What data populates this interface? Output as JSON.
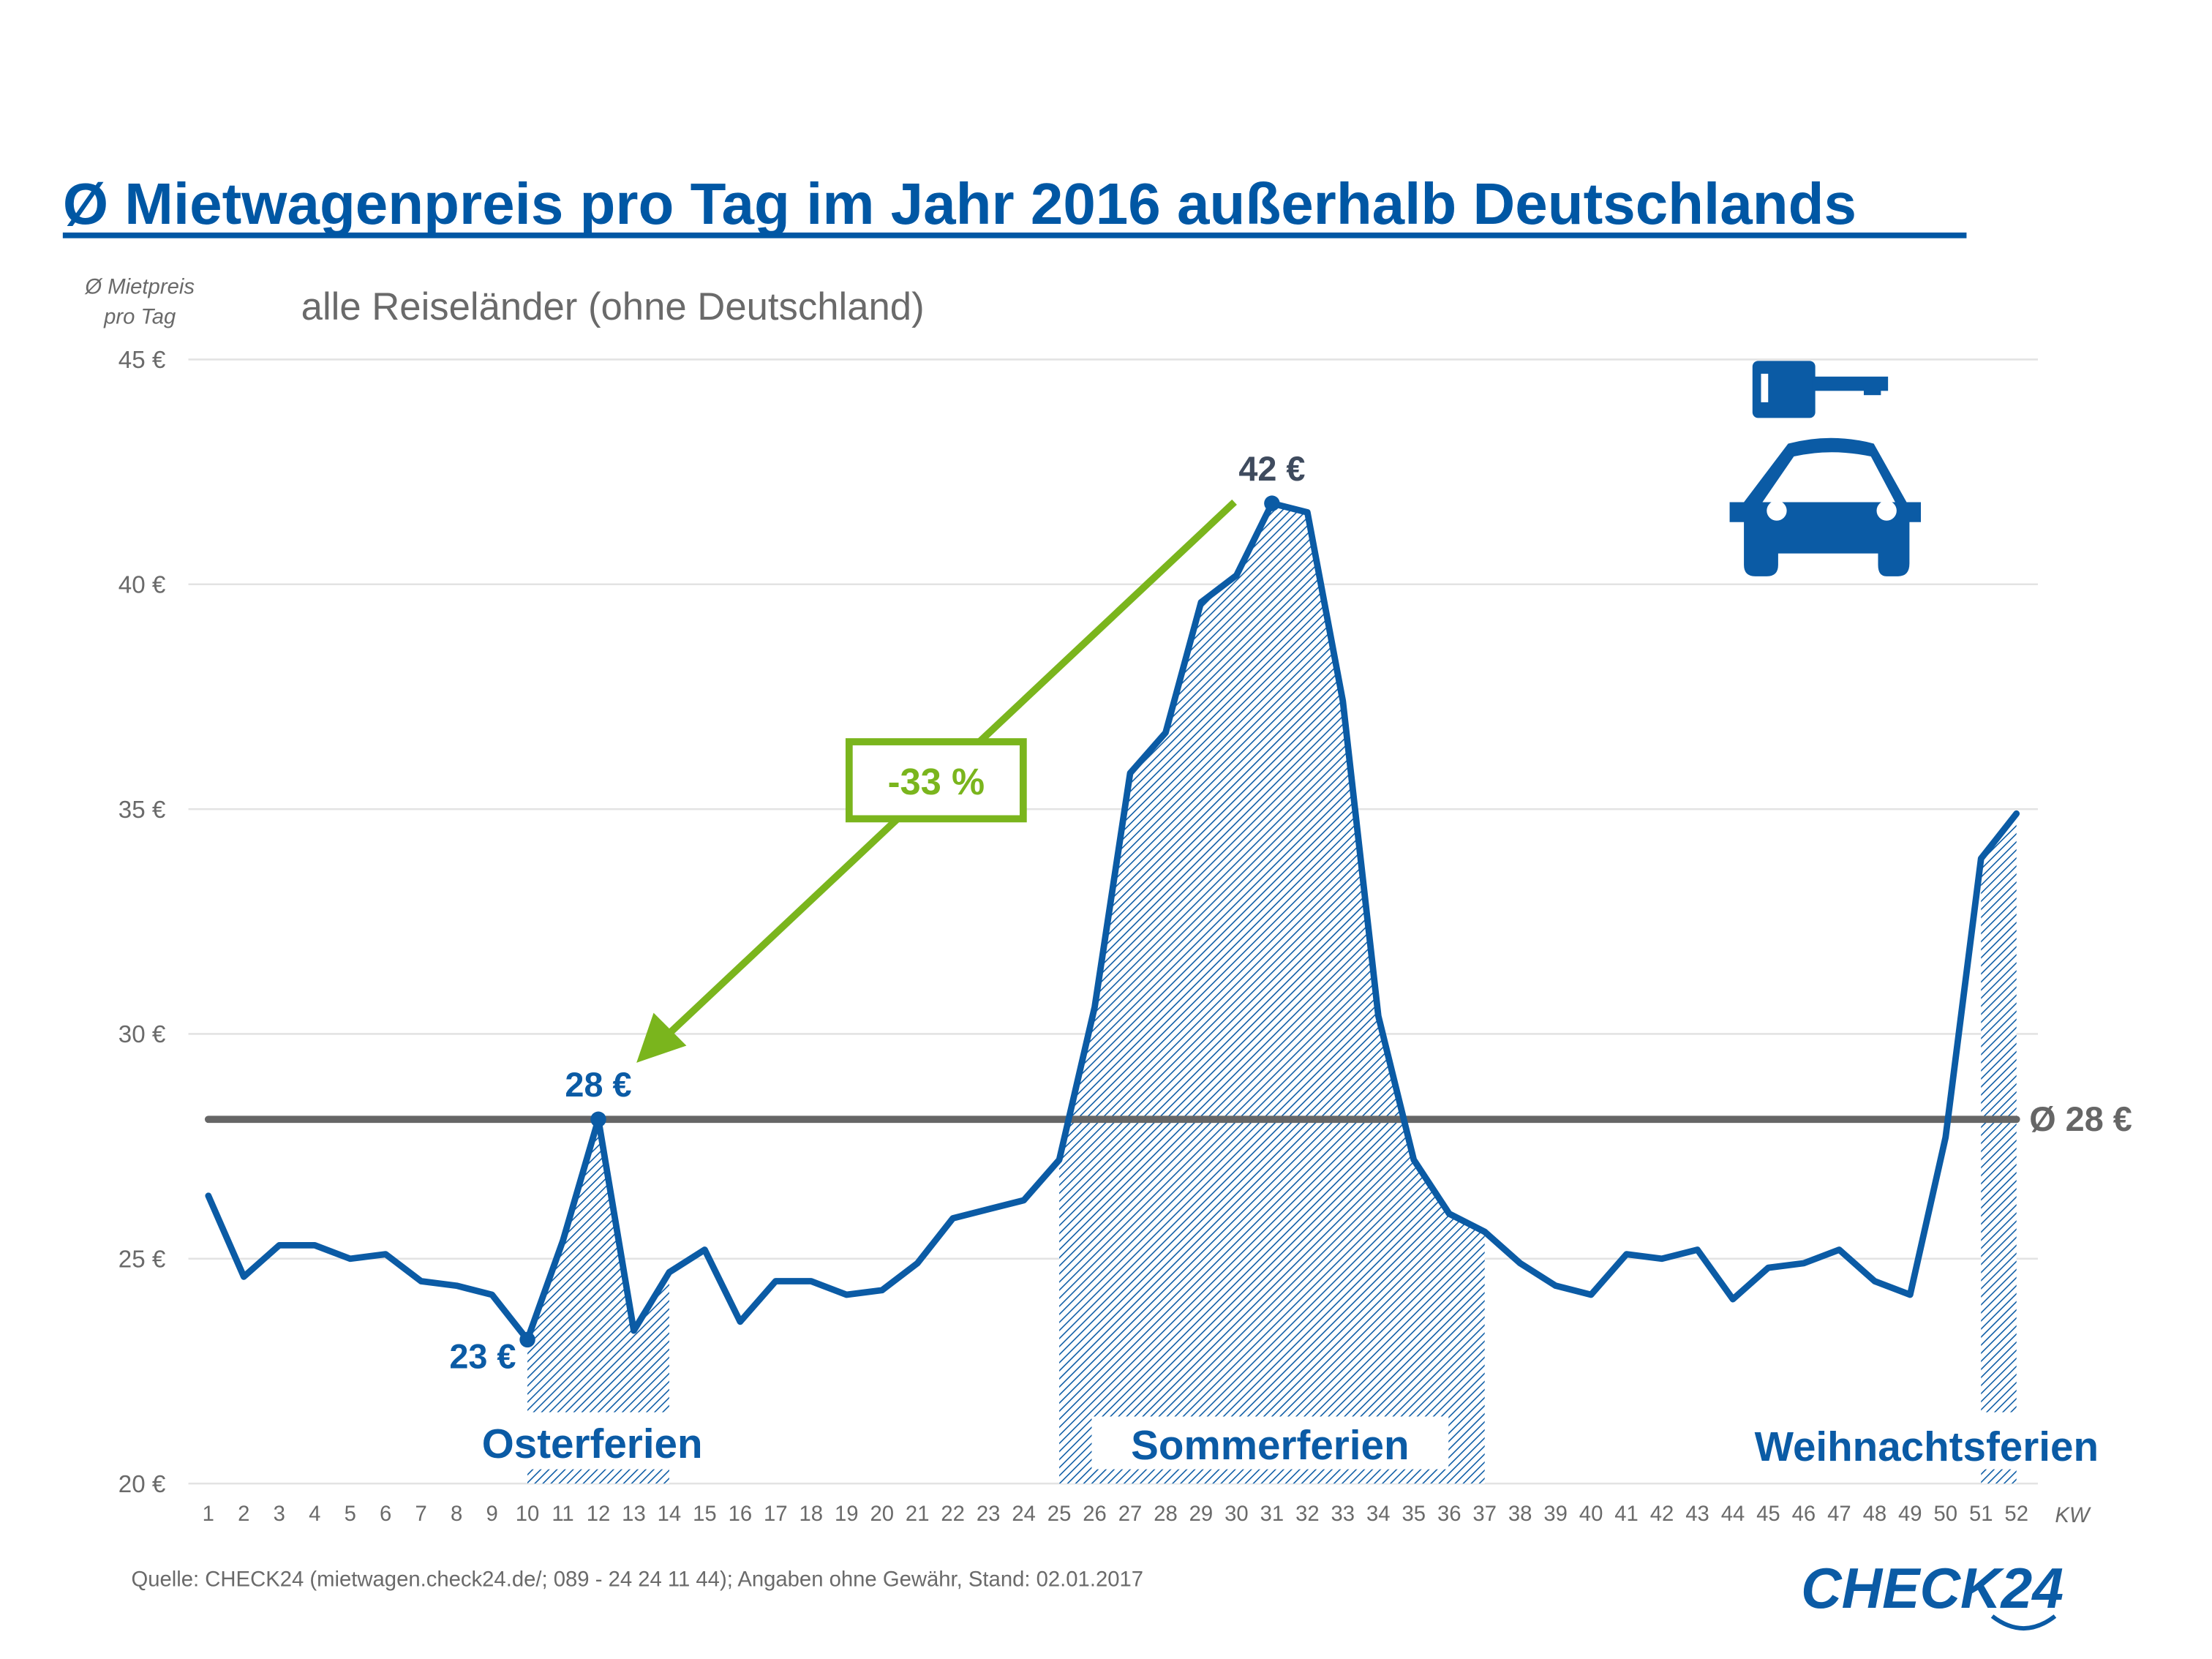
{
  "header": {
    "title": "Ø Mietwagenpreis pro Tag im Jahr 2016 außerhalb Deutschlands",
    "subtitle": "alle Reiseländer (ohne Deutschland)"
  },
  "colors": {
    "brand_blue": "#0b5ba5",
    "title_blue": "#0057a4",
    "average_gray": "#666666",
    "change_green": "#7ab51d",
    "peak_label": "#3f4b5e",
    "grid": "#e3e3e3",
    "text_gray": "#6a6a6a"
  },
  "chart_data": {
    "type": "line",
    "title": "Ø Mietwagenpreis pro Tag im Jahr 2016 außerhalb Deutschlands",
    "subtitle": "alle Reiseländer (ohne Deutschland)",
    "ylabel_line1": "Ø Mietpreis",
    "ylabel_line2": "pro Tag",
    "xlabel": "KW",
    "ylim": [
      20,
      45
    ],
    "yticks": [
      20,
      25,
      30,
      35,
      40,
      45
    ],
    "ytick_labels": [
      "20 €",
      "25 €",
      "30 €",
      "35 €",
      "40 €",
      "45 €"
    ],
    "grid": true,
    "x": [
      1,
      2,
      3,
      4,
      5,
      6,
      7,
      8,
      9,
      10,
      11,
      12,
      13,
      14,
      15,
      16,
      17,
      18,
      19,
      20,
      21,
      22,
      23,
      24,
      25,
      26,
      27,
      28,
      29,
      30,
      31,
      32,
      33,
      34,
      35,
      36,
      37,
      38,
      39,
      40,
      41,
      42,
      43,
      44,
      45,
      46,
      47,
      48,
      49,
      50,
      51,
      52
    ],
    "xtick_labels": [
      "1",
      "2",
      "3",
      "4",
      "5",
      "6",
      "7",
      "8",
      "9",
      "10",
      "11",
      "12",
      "13",
      "14",
      "15",
      "16",
      "17",
      "18",
      "19",
      "20",
      "21",
      "22",
      "23",
      "24",
      "25",
      "26",
      "27",
      "28",
      "29",
      "30",
      "31",
      "32",
      "33",
      "34",
      "35",
      "36",
      "37",
      "38",
      "39",
      "40",
      "41",
      "42",
      "43",
      "44",
      "45",
      "46",
      "47",
      "48",
      "49",
      "50",
      "51",
      "52"
    ],
    "series": [
      {
        "name": "Ø Mietpreis pro Tag",
        "values": [
          26.4,
          24.6,
          25.3,
          25.3,
          25.0,
          25.1,
          24.5,
          24.4,
          24.2,
          23.2,
          25.4,
          28.1,
          23.4,
          24.7,
          25.2,
          23.6,
          24.5,
          24.5,
          24.2,
          24.3,
          24.9,
          25.9,
          26.1,
          26.3,
          27.2,
          30.6,
          35.8,
          36.7,
          39.6,
          40.2,
          41.8,
          41.6,
          37.4,
          30.4,
          27.2,
          26.0,
          25.6,
          24.9,
          24.4,
          24.2,
          25.1,
          25.0,
          25.2,
          24.1,
          24.8,
          24.9,
          25.2,
          24.5,
          24.2,
          27.7,
          33.9,
          34.9
        ]
      }
    ],
    "average": {
      "value": 28.1,
      "label": "Ø 28 €"
    },
    "holidays": [
      {
        "label": "Osterferien",
        "from_week": 10,
        "to_week": 14
      },
      {
        "label": "Sommerferien",
        "from_week": 25,
        "to_week": 37
      },
      {
        "label": "Weihnachtsferien",
        "from_week": 51,
        "to_week": 52
      }
    ],
    "annotations": [
      {
        "week": 10,
        "value": 23.2,
        "label": "23 €",
        "style": "blue"
      },
      {
        "week": 12,
        "value": 28.1,
        "label": "28 €",
        "style": "blue"
      },
      {
        "week": 31,
        "value": 41.8,
        "label": "42 €",
        "style": "dark"
      }
    ],
    "change_arrow": {
      "from_week": 31,
      "to_week": 12,
      "label": "-33 %"
    }
  },
  "footer": {
    "source": "Quelle: CHECK24 (mietwagen.check24.de/;  089 - 24 24 11 44); Angaben ohne Gewähr, Stand: 02.01.2017",
    "logo_text": "CHECK24"
  },
  "icons": {
    "illustration": "car-key-icon"
  }
}
